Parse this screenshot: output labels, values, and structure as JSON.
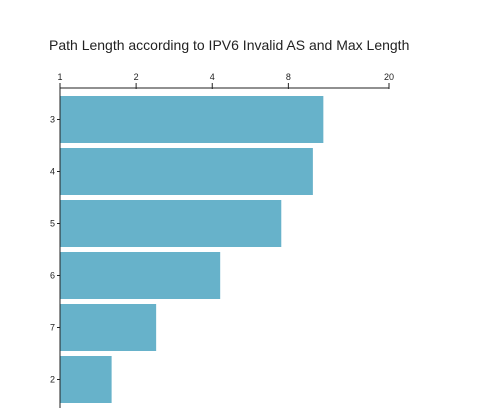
{
  "chart_data": {
    "type": "bar",
    "orientation": "horizontal",
    "title": "Path Length according to IPV6 Invalid AS and Max Length",
    "xlabel": "",
    "ylabel": "",
    "x_scale": "log",
    "xlim": [
      1,
      20
    ],
    "x_ticks": [
      1,
      2,
      4,
      8,
      20
    ],
    "x_tick_labels": [
      "1",
      "2",
      "4",
      "8",
      "20"
    ],
    "x_axis_position": "top",
    "grid": false,
    "categories": [
      "3",
      "4",
      "5",
      "6",
      "7",
      "2"
    ],
    "values": [
      11,
      10,
      7.5,
      4.3,
      2.4,
      1.6
    ],
    "bar_color": "#67b2ca"
  }
}
